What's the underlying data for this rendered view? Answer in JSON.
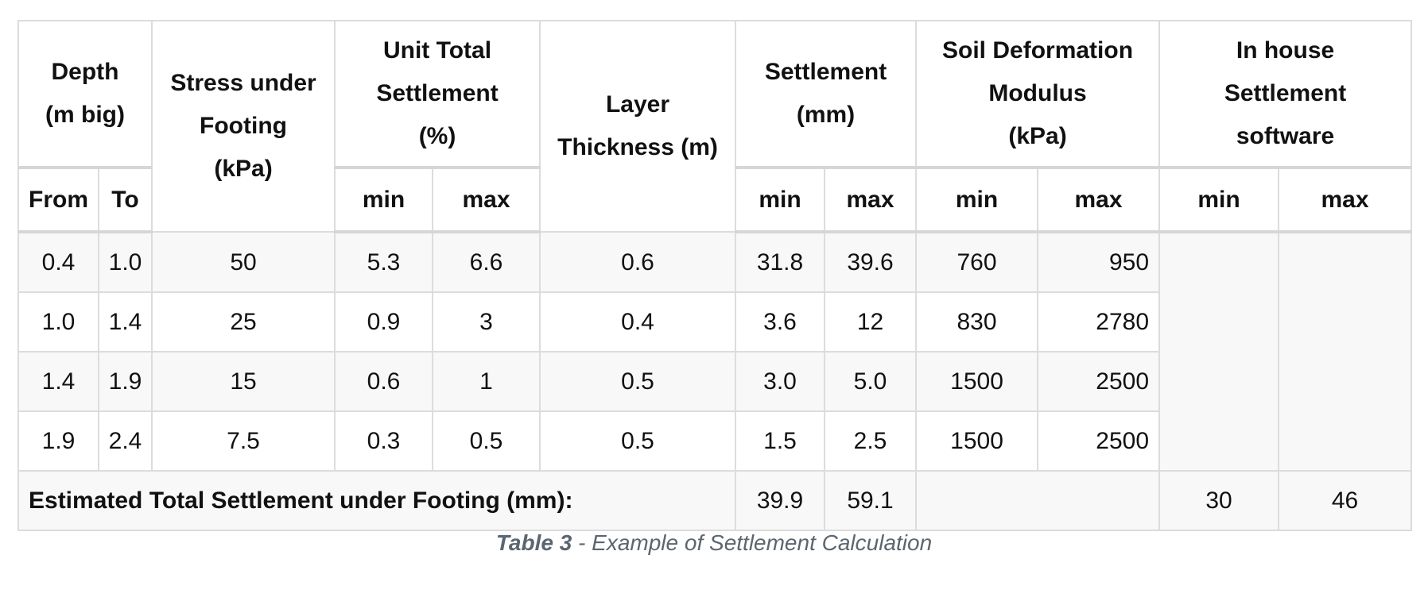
{
  "table": {
    "headers": {
      "depth": "Depth\n(m big)",
      "stress": "Stress under\nFooting\n(kPa)",
      "unit_total": "Unit Total\nSettlement\n(%)",
      "layer": "Layer\nThickness (m)",
      "settlement": "Settlement\n(mm)",
      "soil_modulus": "Soil Deformation\nModulus\n(kPa)",
      "in_house": "In house\nSettlement\nsoftware",
      "from": "From",
      "to": "To",
      "min": "min",
      "max": "max"
    },
    "rows": [
      {
        "from": "0.4",
        "to": "1.0",
        "stress": "50",
        "ut_min": "5.3",
        "ut_max": "6.6",
        "layer": "0.6",
        "s_min": "31.8",
        "s_max": "39.6",
        "m_min": "760",
        "m_max": "950"
      },
      {
        "from": "1.0",
        "to": "1.4",
        "stress": "25",
        "ut_min": "0.9",
        "ut_max": "3",
        "layer": "0.4",
        "s_min": "3.6",
        "s_max": "12",
        "m_min": "830",
        "m_max": "2780"
      },
      {
        "from": "1.4",
        "to": "1.9",
        "stress": "15",
        "ut_min": "0.6",
        "ut_max": "1",
        "layer": "0.5",
        "s_min": "3.0",
        "s_max": "5.0",
        "m_min": "1500",
        "m_max": "2500"
      },
      {
        "from": "1.9",
        "to": "2.4",
        "stress": "7.5",
        "ut_min": "0.3",
        "ut_max": "0.5",
        "layer": "0.5",
        "s_min": "1.5",
        "s_max": "2.5",
        "m_min": "1500",
        "m_max": "2500"
      }
    ],
    "total": {
      "label": "Estimated Total Settlement under Footing (mm):",
      "s_min": "39.9",
      "s_max": "59.1",
      "ih_min": "30",
      "ih_max": "46"
    }
  },
  "caption": {
    "tag": "Table 3",
    "text": " - Example of Settlement Calculation"
  }
}
